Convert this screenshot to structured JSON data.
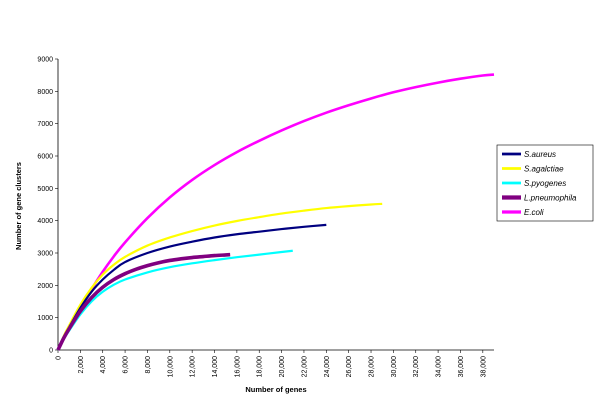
{
  "chart_data": {
    "type": "line",
    "xlabel": "Number of genes",
    "ylabel": "Number of gene clusters",
    "xlim": [
      0,
      39000
    ],
    "ylim": [
      0,
      9000
    ],
    "x_ticks": [
      "0",
      "2,000",
      "4,000",
      "6,000",
      "8,000",
      "10,000",
      "12,000",
      "14,000",
      "16,000",
      "18,000",
      "20,000",
      "22,000",
      "24,000",
      "26,000",
      "28,000",
      "30,000",
      "32,000",
      "34,000",
      "36,000",
      "38,000"
    ],
    "y_ticks": [
      "0",
      "1000",
      "2000",
      "3000",
      "4000",
      "5000",
      "6000",
      "7000",
      "8000",
      "9000"
    ],
    "grid": false,
    "legend_position": "right",
    "series": [
      {
        "name": "S.aureus",
        "color": "#000080",
        "x": [
          0,
          500,
          1000,
          2000,
          3000,
          4000,
          5000,
          6000,
          8000,
          10000,
          12000,
          14000,
          16000,
          18000,
          20000,
          22000,
          24000
        ],
        "y": [
          0,
          380,
          700,
          1300,
          1800,
          2180,
          2480,
          2720,
          3000,
          3200,
          3350,
          3480,
          3580,
          3660,
          3740,
          3810,
          3870
        ]
      },
      {
        "name": "S.agalctiae",
        "color": "#ffff00",
        "x": [
          0,
          500,
          1000,
          2000,
          3000,
          4000,
          5000,
          6000,
          8000,
          10000,
          12000,
          14000,
          16000,
          18000,
          20000,
          22000,
          24000,
          26000,
          28000,
          29000
        ],
        "y": [
          0,
          420,
          760,
          1400,
          1920,
          2330,
          2640,
          2880,
          3230,
          3480,
          3680,
          3850,
          3990,
          4110,
          4220,
          4310,
          4390,
          4450,
          4500,
          4520
        ]
      },
      {
        "name": "S.pyogenes",
        "color": "#00ffff",
        "x": [
          0,
          500,
          1000,
          2000,
          3000,
          4000,
          5000,
          6000,
          8000,
          10000,
          12000,
          14000,
          16000,
          18000,
          20000,
          21000
        ],
        "y": [
          0,
          330,
          600,
          1100,
          1500,
          1800,
          2020,
          2180,
          2400,
          2560,
          2680,
          2780,
          2870,
          2950,
          3030,
          3070
        ]
      },
      {
        "name": "L.pneumophila",
        "color": "#800080",
        "x": [
          0,
          500,
          1000,
          2000,
          3000,
          4000,
          5000,
          6000,
          7000,
          8000,
          9000,
          10000,
          11000,
          12000,
          13000,
          14000,
          15000,
          15400
        ],
        "y": [
          0,
          360,
          660,
          1200,
          1620,
          1940,
          2180,
          2360,
          2500,
          2610,
          2700,
          2770,
          2820,
          2860,
          2890,
          2920,
          2940,
          2950
        ]
      },
      {
        "name": "E.coli",
        "color": "#ff00ff",
        "x": [
          0,
          500,
          1000,
          2000,
          3000,
          4000,
          5000,
          6000,
          8000,
          10000,
          12000,
          14000,
          16000,
          18000,
          20000,
          22000,
          24000,
          26000,
          28000,
          30000,
          32000,
          34000,
          36000,
          38000,
          39000
        ],
        "y": [
          0,
          350,
          680,
          1300,
          1880,
          2420,
          2900,
          3330,
          4080,
          4720,
          5260,
          5720,
          6120,
          6470,
          6790,
          7080,
          7340,
          7570,
          7780,
          7970,
          8130,
          8270,
          8390,
          8490,
          8520
        ]
      }
    ]
  }
}
